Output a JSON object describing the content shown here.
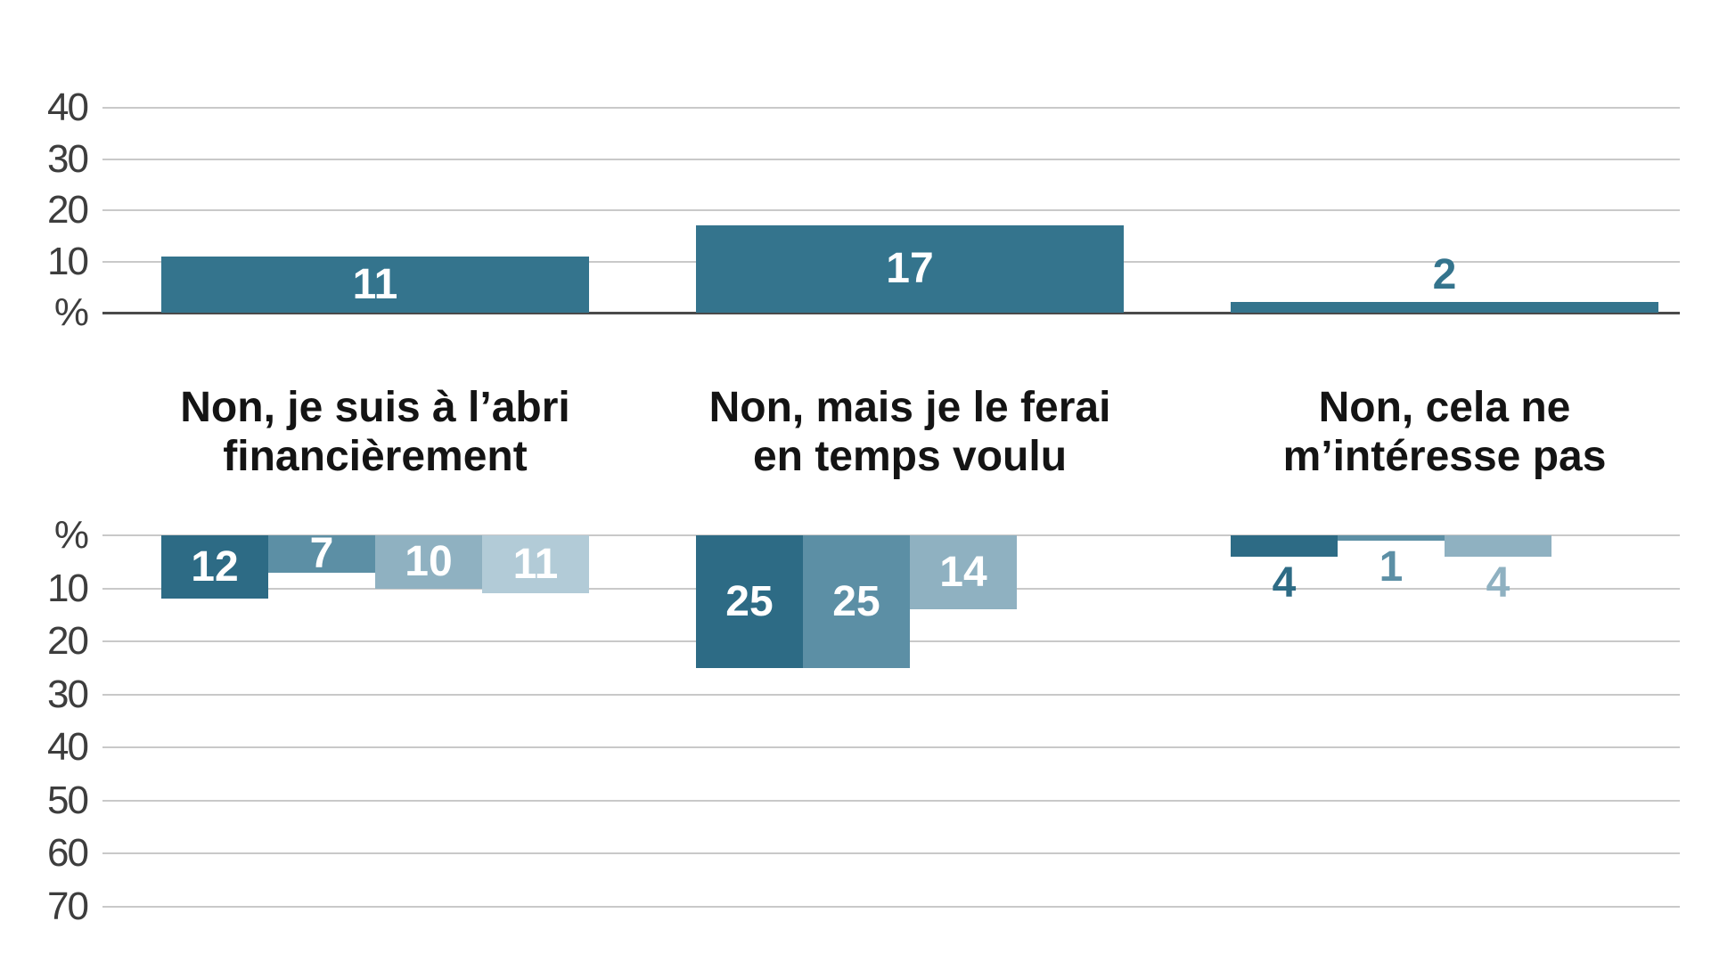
{
  "chart_data": {
    "type": "bar",
    "title": "",
    "unit_label": "%",
    "legend": "none",
    "grid": true,
    "categories": [
      "Non, je suis à l’abri\nfinancièrement",
      "Non, mais je le ferai\nen temps voulu",
      "Non, cela ne\nm’intéresse pas"
    ],
    "top_panel": {
      "direction": "up",
      "axis_ticks": [
        "40",
        "30",
        "20",
        "10",
        "%"
      ],
      "axis_tick_values": [
        40,
        30,
        20,
        10,
        0
      ],
      "ylim": [
        0,
        40
      ],
      "series_name": "total",
      "values": [
        11,
        17,
        2
      ],
      "bar_color": "#34748D"
    },
    "bottom_panel": {
      "direction": "down",
      "axis_ticks": [
        "%",
        "10",
        "20",
        "30",
        "40",
        "50",
        "60",
        "70"
      ],
      "axis_tick_values": [
        0,
        10,
        20,
        30,
        40,
        50,
        60,
        70
      ],
      "ylim": [
        0,
        70
      ],
      "groups": [
        [
          12,
          7,
          10,
          11
        ],
        [
          25,
          25,
          14
        ],
        [
          4,
          1,
          4
        ]
      ],
      "series_colors": [
        "#2D6B85",
        "#5C8FA5",
        "#8FB1C1",
        "#B2CBD7"
      ]
    },
    "colors": {
      "gridline": "#C9C9C9",
      "baseline": "#4A4A4A",
      "axis_text": "#3D3D3D",
      "category_text": "#141414",
      "value_label_inside": "#FFFFFF"
    }
  }
}
